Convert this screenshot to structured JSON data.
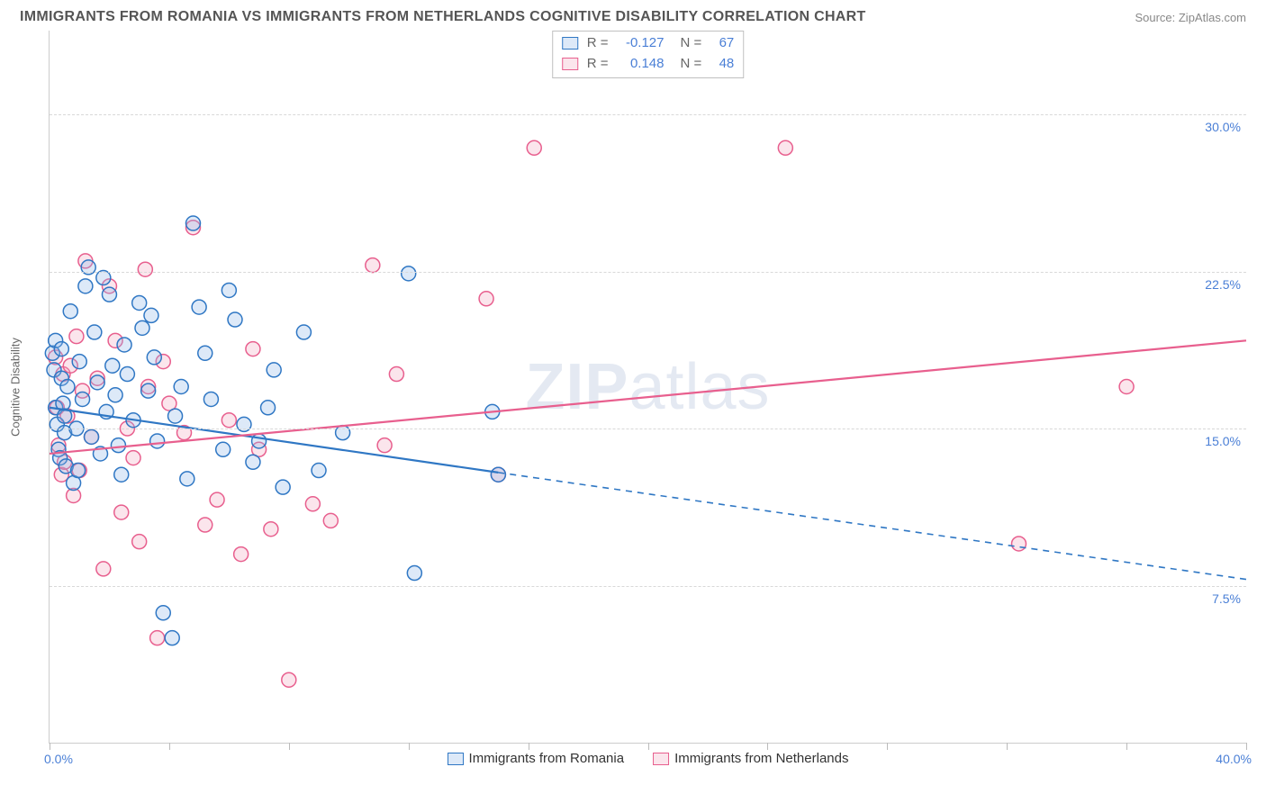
{
  "title": "IMMIGRANTS FROM ROMANIA VS IMMIGRANTS FROM NETHERLANDS COGNITIVE DISABILITY CORRELATION CHART",
  "source": "Source: ZipAtlas.com",
  "watermark": "ZIPatlas",
  "ylabel": "Cognitive Disability",
  "chart": {
    "type": "scatter",
    "xlim": [
      0,
      40
    ],
    "ylim": [
      0,
      34
    ],
    "x_tick_labels": [
      "0.0%",
      "40.0%"
    ],
    "x_tick_marks": [
      0,
      4,
      8,
      12,
      16,
      20,
      24,
      28,
      32,
      36,
      40
    ],
    "y_gridlines": [
      {
        "value": 7.5,
        "label": "7.5%"
      },
      {
        "value": 15.0,
        "label": "15.0%"
      },
      {
        "value": 22.5,
        "label": "22.5%"
      },
      {
        "value": 30.0,
        "label": "30.0%"
      }
    ],
    "tick_color": "#4a7fd6",
    "grid_color": "#d8d8d8",
    "axis_color": "#cccccc",
    "background": "#ffffff",
    "marker_radius": 8,
    "marker_stroke_width": 1.5,
    "marker_fill_opacity": 0.3,
    "trend_line_width": 2.2
  },
  "series": [
    {
      "name": "Immigrants from Romania",
      "color_stroke": "#2f77c4",
      "color_fill": "#8db6e8",
      "R": "-0.127",
      "N": "67",
      "trend": {
        "x1": 0,
        "y1": 16.0,
        "x2": 15.0,
        "y2": 12.9,
        "extend_to_x": 40,
        "extend_y": 7.8,
        "dash_after_x": 15.0
      },
      "points": [
        [
          0.1,
          18.6
        ],
        [
          0.15,
          17.8
        ],
        [
          0.2,
          19.2
        ],
        [
          0.2,
          16.0
        ],
        [
          0.25,
          15.2
        ],
        [
          0.3,
          14.0
        ],
        [
          0.35,
          13.6
        ],
        [
          0.4,
          17.4
        ],
        [
          0.4,
          18.8
        ],
        [
          0.45,
          16.2
        ],
        [
          0.5,
          15.6
        ],
        [
          0.5,
          14.8
        ],
        [
          0.55,
          13.2
        ],
        [
          0.6,
          17.0
        ],
        [
          0.7,
          20.6
        ],
        [
          0.8,
          12.4
        ],
        [
          0.9,
          15.0
        ],
        [
          0.95,
          13.0
        ],
        [
          1.0,
          18.2
        ],
        [
          1.1,
          16.4
        ],
        [
          1.2,
          21.8
        ],
        [
          1.3,
          22.7
        ],
        [
          1.4,
          14.6
        ],
        [
          1.5,
          19.6
        ],
        [
          1.6,
          17.2
        ],
        [
          1.7,
          13.8
        ],
        [
          1.8,
          22.2
        ],
        [
          1.9,
          15.8
        ],
        [
          2.0,
          21.4
        ],
        [
          2.1,
          18.0
        ],
        [
          2.2,
          16.6
        ],
        [
          2.3,
          14.2
        ],
        [
          2.4,
          12.8
        ],
        [
          2.5,
          19.0
        ],
        [
          2.6,
          17.6
        ],
        [
          2.8,
          15.4
        ],
        [
          3.0,
          21.0
        ],
        [
          3.1,
          19.8
        ],
        [
          3.3,
          16.8
        ],
        [
          3.4,
          20.4
        ],
        [
          3.5,
          18.4
        ],
        [
          3.6,
          14.4
        ],
        [
          3.8,
          6.2
        ],
        [
          4.1,
          5.0
        ],
        [
          4.2,
          15.6
        ],
        [
          4.4,
          17.0
        ],
        [
          4.6,
          12.6
        ],
        [
          4.8,
          24.8
        ],
        [
          5.0,
          20.8
        ],
        [
          5.2,
          18.6
        ],
        [
          5.4,
          16.4
        ],
        [
          5.8,
          14.0
        ],
        [
          6.0,
          21.6
        ],
        [
          6.2,
          20.2
        ],
        [
          6.5,
          15.2
        ],
        [
          6.8,
          13.4
        ],
        [
          7.0,
          14.4
        ],
        [
          7.3,
          16.0
        ],
        [
          7.5,
          17.8
        ],
        [
          7.8,
          12.2
        ],
        [
          8.5,
          19.6
        ],
        [
          9.0,
          13.0
        ],
        [
          9.8,
          14.8
        ],
        [
          12.0,
          22.4
        ],
        [
          12.2,
          8.1
        ],
        [
          14.8,
          15.8
        ],
        [
          15.0,
          12.8
        ]
      ]
    },
    {
      "name": "Immigrants from Netherlands",
      "color_stroke": "#e85f8e",
      "color_fill": "#f2a9c0",
      "R": "0.148",
      "N": "48",
      "trend": {
        "x1": 0,
        "y1": 13.8,
        "x2": 40,
        "y2": 19.2,
        "extend_to_x": 40,
        "extend_y": 19.2,
        "dash_after_x": 40
      },
      "points": [
        [
          0.2,
          18.4
        ],
        [
          0.25,
          16.0
        ],
        [
          0.3,
          14.2
        ],
        [
          0.4,
          12.8
        ],
        [
          0.45,
          17.6
        ],
        [
          0.5,
          13.4
        ],
        [
          0.6,
          15.6
        ],
        [
          0.7,
          18.0
        ],
        [
          0.8,
          11.8
        ],
        [
          0.9,
          19.4
        ],
        [
          1.0,
          13.0
        ],
        [
          1.1,
          16.8
        ],
        [
          1.2,
          23.0
        ],
        [
          1.4,
          14.6
        ],
        [
          1.6,
          17.4
        ],
        [
          1.8,
          8.3
        ],
        [
          2.0,
          21.8
        ],
        [
          2.2,
          19.2
        ],
        [
          2.4,
          11.0
        ],
        [
          2.6,
          15.0
        ],
        [
          2.8,
          13.6
        ],
        [
          3.0,
          9.6
        ],
        [
          3.2,
          22.6
        ],
        [
          3.3,
          17.0
        ],
        [
          3.6,
          5.0
        ],
        [
          3.8,
          18.2
        ],
        [
          4.0,
          16.2
        ],
        [
          4.5,
          14.8
        ],
        [
          4.8,
          24.6
        ],
        [
          5.2,
          10.4
        ],
        [
          5.6,
          11.6
        ],
        [
          6.0,
          15.4
        ],
        [
          6.4,
          9.0
        ],
        [
          6.8,
          18.8
        ],
        [
          7.0,
          14.0
        ],
        [
          7.4,
          10.2
        ],
        [
          8.0,
          3.0
        ],
        [
          8.8,
          11.4
        ],
        [
          9.4,
          10.6
        ],
        [
          10.8,
          22.8
        ],
        [
          11.2,
          14.2
        ],
        [
          11.6,
          17.6
        ],
        [
          14.6,
          21.2
        ],
        [
          15.0,
          12.8
        ],
        [
          16.2,
          28.4
        ],
        [
          24.6,
          28.4
        ],
        [
          32.4,
          9.5
        ],
        [
          36.0,
          17.0
        ]
      ]
    }
  ],
  "legend_bottom": [
    {
      "label": "Immigrants from Romania",
      "stroke": "#2f77c4",
      "fill": "#8db6e8"
    },
    {
      "label": "Immigrants from Netherlands",
      "stroke": "#e85f8e",
      "fill": "#f2a9c0"
    }
  ]
}
